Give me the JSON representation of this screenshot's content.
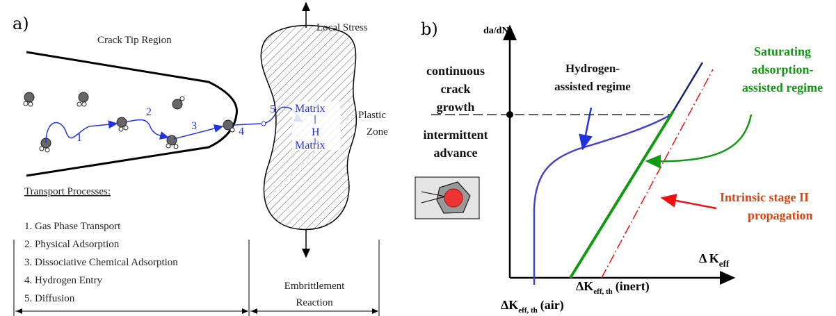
{
  "panel_a": {
    "label": "a)",
    "crack_tip_region": "Crack Tip Region",
    "local_stress": "Local Stress",
    "plastic_zone": [
      "Plastic",
      "Zone"
    ],
    "matrix_top": "Matrix",
    "hydrogen": "H",
    "matrix_bottom": "Matrix",
    "steps": [
      "1",
      "2",
      "3",
      "4",
      "5"
    ],
    "transport_title": "Transport Processes:",
    "transport_items": [
      "1. Gas Phase Transport",
      "2. Physical Adsorption",
      "3. Dissociative Chemical Adsorption",
      "4. Hydrogen Entry",
      "5. Diffusion"
    ],
    "embrittlement": [
      "Embrittlement",
      "Reaction"
    ]
  },
  "panel_b": {
    "label": "b)",
    "y_axis": "da/dN",
    "continuous": [
      "continuous",
      "crack",
      "growth"
    ],
    "intermittent": [
      "intermittent",
      "advance"
    ],
    "hydrogen_regime": [
      "Hydrogen-",
      "assisted regime"
    ],
    "saturating_regime": [
      "Saturating",
      "adsorption-",
      "assisted regime"
    ],
    "intrinsic": [
      "Intrinsic stage II",
      "propagation"
    ],
    "x_axis": {
      "main": "Δ K",
      "sub": "eff"
    },
    "threshold_inert": {
      "main": "ΔK",
      "sub": "eff, th",
      "suffix": "(inert)"
    },
    "threshold_air": {
      "main": "ΔK",
      "sub": "eff, th",
      "suffix": "(air)"
    }
  }
}
